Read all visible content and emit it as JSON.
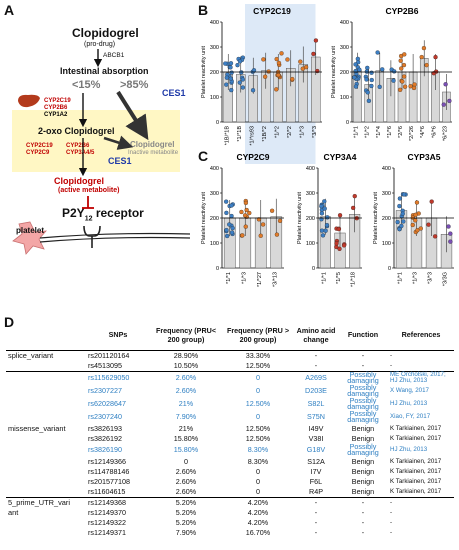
{
  "panels": {
    "a": "A",
    "b": "B",
    "c": "C",
    "d": "D"
  },
  "flow": {
    "clopidogrel": "Clopidogrel",
    "prodrug": "(pro-drug)",
    "abcb1": "ABCB1",
    "absorption": "Intestinal absorption",
    "pct_low": "<15%",
    "pct_high": ">85%",
    "ces1_top": "CES1",
    "enz1": [
      "CYP2C19",
      "CYP2B6",
      "CYP1A2"
    ],
    "oxo": "2-oxo Clopidogrel",
    "inactive_name": "Clopidogrel",
    "inactive_sub": "Inactive metabolite",
    "enz2_left": [
      "CYP2C19",
      "CYP2C9"
    ],
    "enz2_right": [
      "CYP2B6",
      "CYP3A4/5"
    ],
    "ces1_bottom": "CES1",
    "active_name": "Clopidogrel",
    "active_sub": "(active metabolite)",
    "platelet": "platelet",
    "receptor": "P2Y",
    "receptor_sub": "12",
    "receptor_suffix": " receptor",
    "colors": {
      "highlight": "#fff7c4",
      "red": "#c00000",
      "blue": "#1f3aa8"
    }
  },
  "chart_data": [
    {
      "type": "scatter",
      "title": "CYP2C19",
      "ylabel": "Platelet reactivity unit",
      "ylim": [
        0,
        400
      ],
      "yticks": [
        0,
        100,
        200,
        300,
        400
      ],
      "categories": [
        "*1B/*1B",
        "*1/*1B",
        "*1/*rs93",
        "*1B/*2",
        "*1/*2",
        "*2/*2",
        "*1/*3",
        "*3/*3"
      ],
      "means": [
        200,
        190,
        185,
        205,
        200,
        215,
        230,
        260
      ],
      "reference_line": 200,
      "highlight": [
        2,
        7
      ],
      "colors": [
        "#3d7fc4",
        "#3d7fc4",
        "#3d7fc4",
        "#e07b2a",
        "#e07b2a",
        "#e07b2a",
        "#e07b2a",
        "#c0392b"
      ]
    },
    {
      "type": "scatter",
      "title": "CYP2B6",
      "ylabel": "Platelet reactivity unit",
      "ylim": [
        0,
        400
      ],
      "yticks": [
        0,
        100,
        200,
        300,
        400
      ],
      "categories": [
        "*1/*1",
        "*1/*2",
        "*1/*4",
        "*1/*6",
        "*2/*6",
        "*2/*26",
        "*4/*6",
        "*6/*6",
        "*6/*23"
      ],
      "means": [
        205,
        150,
        205,
        175,
        200,
        200,
        255,
        200,
        120
      ],
      "reference_line": 200,
      "colors": [
        "#3d7fc4",
        "#3d7fc4",
        "#3d7fc4",
        "#3d7fc4",
        "#e07b2a",
        "#e07b2a",
        "#e07b2a",
        "#c0392b",
        "#7a4fb5"
      ]
    },
    {
      "type": "scatter",
      "title": "CYP2C9",
      "ylabel": "Platelet reactivity unit",
      "ylim": [
        0,
        400
      ],
      "yticks": [
        0,
        100,
        200,
        300,
        400
      ],
      "categories": [
        "*1/*1",
        "*1/*3",
        "*1/*27",
        "*3/*13"
      ],
      "means": [
        200,
        200,
        200,
        205
      ],
      "reference_line": 200,
      "colors": [
        "#3d7fc4",
        "#e07b2a",
        "#e07b2a",
        "#e07b2a"
      ]
    },
    {
      "type": "scatter",
      "title": "CYP3A4",
      "ylabel": "Platelet reactivity unit",
      "ylim": [
        0,
        400
      ],
      "yticks": [
        0,
        100,
        200,
        300,
        400
      ],
      "categories": [
        "*1/*1",
        "*1/*5",
        "*1/*18"
      ],
      "means": [
        205,
        140,
        215
      ],
      "reference_line": 200,
      "colors": [
        "#3d7fc4",
        "#c0392b",
        "#c0392b"
      ]
    },
    {
      "type": "scatter",
      "title": "CYP3A5",
      "ylabel": "Platelet reactivity unit",
      "ylim": [
        0,
        400
      ],
      "yticks": [
        0,
        100,
        200,
        300,
        400
      ],
      "categories": [
        "*1/*1",
        "*1/*3",
        "*3/*3",
        "*3/3G"
      ],
      "means": [
        230,
        200,
        200,
        135
      ],
      "reference_line": 200,
      "colors": [
        "#3d7fc4",
        "#e07b2a",
        "#c0392b",
        "#7a4fb5"
      ]
    }
  ],
  "table": {
    "headers": [
      "SNPs",
      "Frequency (PRU< 200 group)",
      "Frequency (PRU > 200 group)",
      "Amino acid change",
      "Function",
      "References"
    ],
    "rows": [
      {
        "group": "splice_variant",
        "rs": "rs201120164",
        "f1": "28.90%",
        "f2": "33.30%",
        "aa": "-",
        "fn": "-",
        "ref": "-",
        "blue": false,
        "top": true
      },
      {
        "group": "",
        "rs": "rs4513095",
        "f1": "10.50%",
        "f2": "12.50%",
        "aa": "-",
        "fn": "-",
        "ref": "-",
        "blue": false,
        "top": false
      },
      {
        "group": "",
        "rs": "rs115629050",
        "f1": "2.60%",
        "f2": "0",
        "aa": "A269S",
        "fn": "Possibly damaging",
        "ref": "ME Orcholski, 2017; HJ Zhu, 2013",
        "blue": true,
        "top": true
      },
      {
        "group": "",
        "rs": "rs2307227",
        "f1": "2.60%",
        "f2": "0",
        "aa": "D203E",
        "fn": "Possibly damaging",
        "ref": "X Wang, 2017",
        "blue": true,
        "top": false
      },
      {
        "group": "",
        "rs": "rs62028647",
        "f1": "21%",
        "f2": "12.50%",
        "aa": "S82L",
        "fn": "Possibly damaging",
        "ref": "HJ Zhu, 2013",
        "blue": true,
        "top": false
      },
      {
        "group": "",
        "rs": "rs2307240",
        "f1": "7.90%",
        "f2": "0",
        "aa": "S75N",
        "fn": "Possibly damaging",
        "ref": "Xiao, FY, 2017",
        "blue": true,
        "top": false
      },
      {
        "group": "missense_variant",
        "rs": "rs3826193",
        "f1": "21%",
        "f2": "12.50%",
        "aa": "I49V",
        "fn": "Benign",
        "ref": "K Tarkiainen, 2017",
        "blue": false,
        "top": false
      },
      {
        "group": "",
        "rs": "rs3826192",
        "f1": "15.80%",
        "f2": "12.50%",
        "aa": "V38I",
        "fn": "Benign",
        "ref": "K Tarkiainen, 2017",
        "blue": false,
        "top": false
      },
      {
        "group": "",
        "rs": "rs3826190",
        "f1": "15.80%",
        "f2": "8.30%",
        "aa": "G18V",
        "fn": "Possibly damaging",
        "ref": "HJ Zhu, 2013",
        "blue": true,
        "top": false
      },
      {
        "group": "",
        "rs": "rs12149366",
        "f1": "0",
        "f2": "8.30%",
        "aa": "S12A",
        "fn": "Benign",
        "ref": "K Tarkiainen, 2017",
        "blue": false,
        "top": false
      },
      {
        "group": "",
        "rs": "rs114788146",
        "f1": "2.60%",
        "f2": "0",
        "aa": "I7V",
        "fn": "Benign",
        "ref": "K Tarkiainen, 2017",
        "blue": false,
        "top": false
      },
      {
        "group": "",
        "rs": "rs201577108",
        "f1": "2.60%",
        "f2": "0",
        "aa": "F6L",
        "fn": "Benign",
        "ref": "K Tarkiainen, 2017",
        "blue": false,
        "top": false
      },
      {
        "group": "",
        "rs": "rs11604615",
        "f1": "2.60%",
        "f2": "0",
        "aa": "R4P",
        "fn": "Benign",
        "ref": "K Tarkiainen, 2017",
        "blue": false,
        "top": false
      },
      {
        "group": "5_prime_UTR_vari",
        "rs": "rs12149368",
        "f1": "5.20%",
        "f2": "4.20%",
        "aa": "-",
        "fn": "-",
        "ref": "-",
        "blue": false,
        "top": true
      },
      {
        "group": "ant",
        "rs": "rs12149370",
        "f1": "5.20%",
        "f2": "4.20%",
        "aa": "-",
        "fn": "-",
        "ref": "-",
        "blue": false,
        "top": false
      },
      {
        "group": "",
        "rs": "rs12149322",
        "f1": "5.20%",
        "f2": "4.20%",
        "aa": "-",
        "fn": "-",
        "ref": "-",
        "blue": false,
        "top": false
      },
      {
        "group": "",
        "rs": "rs12149371",
        "f1": "7.90%",
        "f2": "16.70%",
        "aa": "-",
        "fn": "-",
        "ref": "-",
        "blue": false,
        "top": false
      }
    ]
  }
}
